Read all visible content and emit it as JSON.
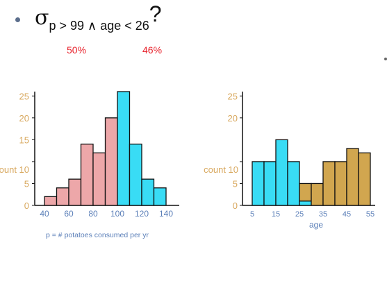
{
  "heading": {
    "sigma": "σ",
    "subscript": "p > 99 ∧ age < 26",
    "question": "?"
  },
  "percentages": [
    "50%",
    "46%"
  ],
  "colors": {
    "pink": "#eda7a9",
    "cyan": "#39dcf5",
    "gold": "#d1a64f",
    "ytick": "#d8a85e",
    "xtick": "#5b7fb8",
    "red": "#e8232d"
  },
  "chart_data": [
    {
      "type": "bar",
      "x": [
        40,
        50,
        60,
        70,
        80,
        90,
        100,
        110,
        120,
        130
      ],
      "bin_width": 10,
      "values": [
        2,
        4,
        6,
        14,
        12,
        20,
        26,
        14,
        6,
        4
      ],
      "colors": [
        "pink",
        "pink",
        "pink",
        "pink",
        "pink",
        "pink",
        "cyan",
        "cyan",
        "cyan",
        "cyan"
      ],
      "ylabel": "count",
      "xlabel": "p = # potatoes consumed per yr",
      "xticks": [
        40,
        60,
        80,
        100,
        120,
        140
      ],
      "yticks": [
        0,
        5,
        10,
        15,
        20,
        25
      ],
      "ylim": [
        0,
        26
      ]
    },
    {
      "type": "bar",
      "x": [
        5,
        10,
        15,
        20,
        25,
        30,
        35,
        40,
        45,
        50,
        55
      ],
      "bin_width": 5,
      "segments": [
        [
          {
            "v": 10,
            "c": "cyan"
          }
        ],
        [
          {
            "v": 10,
            "c": "cyan"
          }
        ],
        [
          {
            "v": 15,
            "c": "cyan"
          }
        ],
        [
          {
            "v": 10,
            "c": "cyan"
          }
        ],
        [
          {
            "v": 1,
            "c": "cyan"
          },
          {
            "v": 4,
            "c": "gold"
          }
        ],
        [
          {
            "v": 5,
            "c": "gold"
          }
        ],
        [
          {
            "v": 10,
            "c": "gold"
          }
        ],
        [
          {
            "v": 10,
            "c": "gold"
          }
        ],
        [
          {
            "v": 13,
            "c": "gold"
          }
        ],
        [
          {
            "v": 12,
            "c": "gold"
          }
        ]
      ],
      "ylabel": "count",
      "xlabel": "age",
      "xticks": [
        5,
        15,
        25,
        35,
        45,
        55
      ],
      "yticks": [
        0,
        5,
        10,
        20,
        25
      ],
      "ylim": [
        0,
        26
      ]
    }
  ]
}
